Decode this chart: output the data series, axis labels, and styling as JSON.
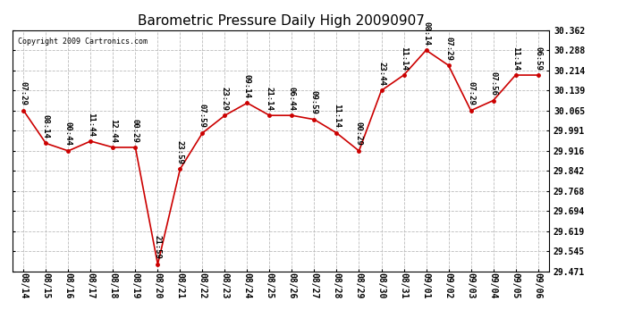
{
  "title": "Barometric Pressure Daily High 20090907",
  "copyright": "Copyright 2009 Cartronics.com",
  "x_labels": [
    "08/14",
    "08/15",
    "08/16",
    "08/17",
    "08/18",
    "08/19",
    "08/20",
    "08/21",
    "08/22",
    "08/23",
    "08/24",
    "08/25",
    "08/26",
    "08/27",
    "08/28",
    "08/29",
    "08/30",
    "08/31",
    "09/01",
    "09/02",
    "09/03",
    "09/04",
    "09/05",
    "09/06"
  ],
  "y_values": [
    30.065,
    29.944,
    29.916,
    29.952,
    29.929,
    29.929,
    29.497,
    29.849,
    29.982,
    30.047,
    30.093,
    30.047,
    30.047,
    30.032,
    29.982,
    29.916,
    30.139,
    30.196,
    30.288,
    30.232,
    30.065,
    30.102,
    30.196,
    30.196
  ],
  "time_labels": [
    "07:29",
    "08:14",
    "00:44",
    "11:44",
    "12:44",
    "00:29",
    "21:59",
    "23:59",
    "07:59",
    "23:29",
    "09:14",
    "21:14",
    "06:44",
    "09:59",
    "11:14",
    "00:29",
    "23:44",
    "11:14",
    "08:14",
    "07:29",
    "07:29",
    "07:56",
    "11:14",
    "06:59"
  ],
  "y_min": 29.471,
  "y_max": 30.362,
  "y_ticks": [
    29.471,
    29.545,
    29.619,
    29.694,
    29.768,
    29.842,
    29.916,
    29.991,
    30.065,
    30.139,
    30.214,
    30.288,
    30.362
  ],
  "line_color": "#cc0000",
  "marker_color": "#cc0000",
  "bg_color": "#ffffff",
  "grid_color": "#bbbbbb",
  "title_fontsize": 11,
  "label_fontsize": 6.5,
  "tick_fontsize": 7,
  "copyright_fontsize": 6
}
